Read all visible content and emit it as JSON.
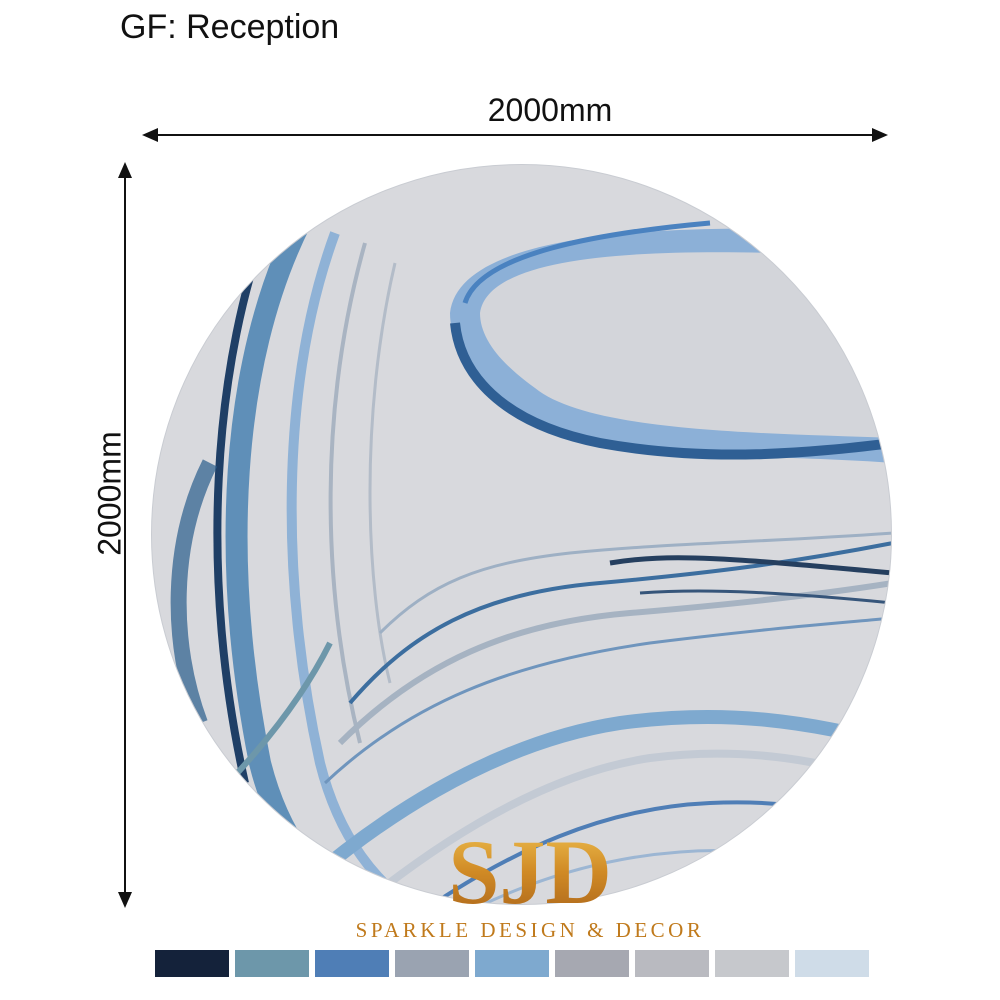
{
  "title": "GF: Reception",
  "dimensions": {
    "width_label": "2000mm",
    "height_label": "2000mm"
  },
  "rug": {
    "shape": "round",
    "pattern": "marble-waves",
    "base_color": "#d8d9dd"
  },
  "brand": {
    "logo_text": "SJD",
    "name": "SPARKLE DESIGN & DECOR",
    "color": "#c07a1c"
  },
  "palette": [
    "#14223a",
    "#6d97aa",
    "#4f7eb6",
    "#9aa3b1",
    "#7ea9cf",
    "#a6a8b1",
    "#b9bac0",
    "#c6c8cc",
    "#cfdce8"
  ]
}
